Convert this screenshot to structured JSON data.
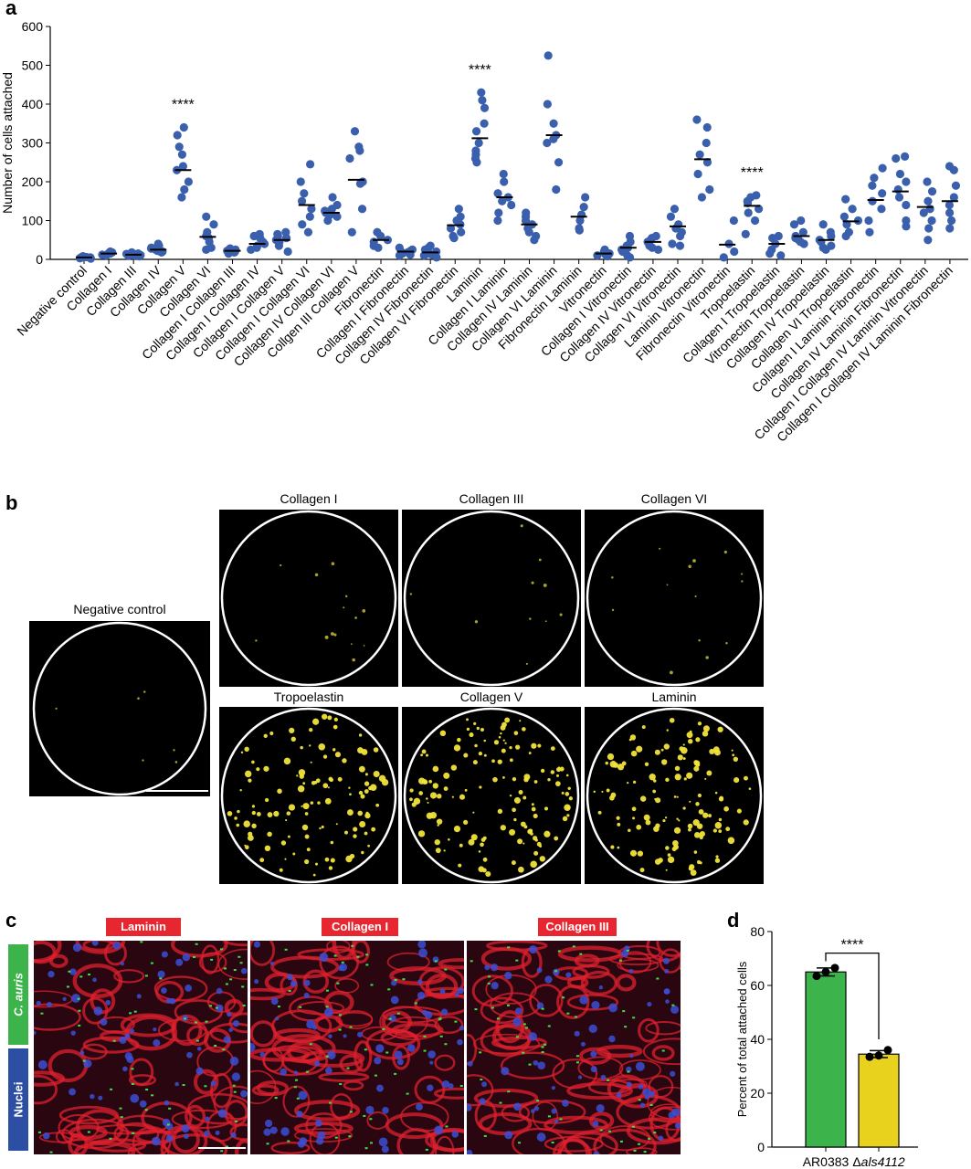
{
  "panels": {
    "a": "a",
    "b": "b",
    "c": "c",
    "d": "d"
  },
  "colors": {
    "dots": "#3a5fad",
    "bar_wt": "#3cb44b",
    "bar_mut": "#e8d21d",
    "tag_red": "#e8262f",
    "tag_green": "#3cb44b",
    "tag_blue": "#2c4fa3",
    "yellow_cells": "#f2e43a"
  },
  "chart_data": [
    {
      "type": "scatter",
      "ylabel": "Number of cells attached",
      "ylim": [
        0,
        600
      ],
      "yticks": [
        0,
        100,
        200,
        300,
        400,
        500,
        600
      ],
      "categories": [
        "Negative control",
        "Collagen I",
        "Collagen III",
        "Collagen IV",
        "Collagen V",
        "Collagen VI",
        "Collagen I Collagen III",
        "Collagen I Collagen IV",
        "Collagen I Collagen V",
        "Collagen I Collagen VI",
        "Collagen IV Collagen VI",
        "Collgen III Collagen V",
        "Fibronectin",
        "Collagen I Fibronectin",
        "Collagen IV Fibronectin",
        "Collagen VI Fibronectin",
        "Laminin",
        "Collagen I Laminin",
        "Collagen IV Laminin",
        "Collagen VI Laminin",
        "Fibronectin Laminin",
        "Vitronectin",
        "Collagen I Vitronectin",
        "Collagen IV Vitronectin",
        "Collagen VI Vitronectin",
        "Laminin Vitronectin",
        "Fibronectin Vitronectin",
        "Tropoelastin",
        "Collagen I Tropoelastin",
        "Vitronectin Tropoelastin",
        "Collagen IV Tropoelastin",
        "Collagen VI Tropoelastin",
        "Collagen I Laminin Fibronectin",
        "Collagen IV Laminin Fibronectin",
        "Collagen I Collagen IV Laminin Vitronectin",
        "Collagen I Collagen IV Laminin Fibronectin"
      ],
      "means": [
        5,
        15,
        12,
        25,
        230,
        58,
        22,
        40,
        50,
        140,
        120,
        205,
        50,
        20,
        18,
        88,
        312,
        160,
        90,
        320,
        110,
        15,
        30,
        45,
        85,
        258,
        38,
        138,
        40,
        60,
        50,
        98,
        153,
        175,
        135,
        150
      ],
      "points": [
        [
          3,
          5,
          7,
          6,
          4,
          2,
          8,
          5
        ],
        [
          12,
          18,
          15,
          20,
          10,
          16
        ],
        [
          8,
          12,
          15,
          10,
          18,
          14,
          9,
          11
        ],
        [
          18,
          25,
          30,
          40,
          22,
          35,
          28,
          20
        ],
        [
          340,
          320,
          290,
          270,
          240,
          230,
          200,
          180,
          160
        ],
        [
          110,
          90,
          70,
          60,
          55,
          45,
          30,
          25
        ],
        [
          15,
          25,
          20,
          28,
          18,
          22
        ],
        [
          25,
          35,
          45,
          60,
          55,
          65,
          30,
          40
        ],
        [
          20,
          35,
          50,
          60,
          70,
          65,
          45,
          55
        ],
        [
          245,
          200,
          170,
          150,
          130,
          110,
          90,
          70
        ],
        [
          160,
          140,
          130,
          120,
          110,
          100,
          125,
          115
        ],
        [
          330,
          290,
          280,
          260,
          200,
          195,
          130,
          70
        ],
        [
          70,
          60,
          50,
          45,
          35,
          30
        ],
        [
          10,
          15,
          20,
          25,
          30,
          22,
          18,
          12
        ],
        [
          5,
          10,
          15,
          20,
          25,
          30,
          35,
          12
        ],
        [
          130,
          110,
          100,
          90,
          80,
          70,
          60,
          55
        ],
        [
          430,
          410,
          390,
          350,
          330,
          300,
          280,
          270,
          260,
          250
        ],
        [
          220,
          200,
          170,
          160,
          150,
          140,
          120,
          100
        ],
        [
          120,
          110,
          100,
          90,
          80,
          70,
          60,
          50
        ],
        [
          525,
          400,
          350,
          320,
          310,
          300,
          250,
          180
        ],
        [
          160,
          135,
          115,
          100,
          80,
          75
        ],
        [
          8,
          12,
          15,
          20,
          25,
          10
        ],
        [
          5,
          10,
          20,
          30,
          45,
          60,
          35,
          25
        ],
        [
          30,
          40,
          50,
          55,
          60,
          45,
          35,
          25
        ],
        [
          130,
          110,
          90,
          80,
          70,
          60,
          40,
          35
        ],
        [
          360,
          340,
          300,
          270,
          250,
          220,
          180,
          160
        ],
        [
          100,
          40,
          20,
          5
        ],
        [
          165,
          160,
          150,
          145,
          130,
          120,
          100,
          65
        ],
        [
          60,
          55,
          40,
          25,
          15,
          10
        ],
        [
          100,
          90,
          70,
          60,
          55,
          50,
          45,
          40
        ],
        [
          90,
          70,
          60,
          50,
          45,
          35,
          30,
          25
        ],
        [
          155,
          130,
          110,
          100,
          90,
          70,
          60
        ],
        [
          235,
          210,
          190,
          170,
          150,
          130,
          100,
          70
        ],
        [
          265,
          260,
          220,
          200,
          180,
          160,
          140,
          100,
          85
        ],
        [
          200,
          175,
          150,
          130,
          120,
          100,
          80,
          50
        ],
        [
          240,
          230,
          190,
          160,
          140,
          120,
          100,
          80
        ]
      ],
      "annotations": [
        {
          "category_index": 4,
          "label": "****"
        },
        {
          "category_index": 16,
          "label": "****"
        },
        {
          "category_index": 27,
          "label": "****"
        }
      ]
    },
    {
      "type": "bar",
      "ylabel": "Percent of total attached cells",
      "ylim": [
        0,
        80
      ],
      "yticks": [
        0,
        20,
        40,
        60,
        80
      ],
      "categories": [
        "AR0383",
        "Δals4112"
      ],
      "series": [
        {
          "values": [
            65,
            34.5
          ],
          "points": [
            [
              63.5,
              65,
              66.5
            ],
            [
              33.5,
              34,
              36
            ]
          ],
          "errors": [
            1.5,
            1.3
          ]
        }
      ],
      "annotations": [
        {
          "label": "****"
        }
      ]
    }
  ],
  "panel_b": {
    "negative_title": "Negative control",
    "top_titles": [
      "Collagen I",
      "Collagen III",
      "Collagen VI"
    ],
    "bottom_titles": [
      "Tropoelastin",
      "Collagen V",
      "Laminin"
    ]
  },
  "panel_c": {
    "titles": [
      "Laminin",
      "Collagen I",
      "Collagen III"
    ],
    "legend_top": "C. auris",
    "legend_bottom": "Nuclei"
  },
  "panel_d_labels": {
    "cat1": "AR0383",
    "cat2_prefix": "Δ",
    "cat2_italic": "als4112"
  }
}
